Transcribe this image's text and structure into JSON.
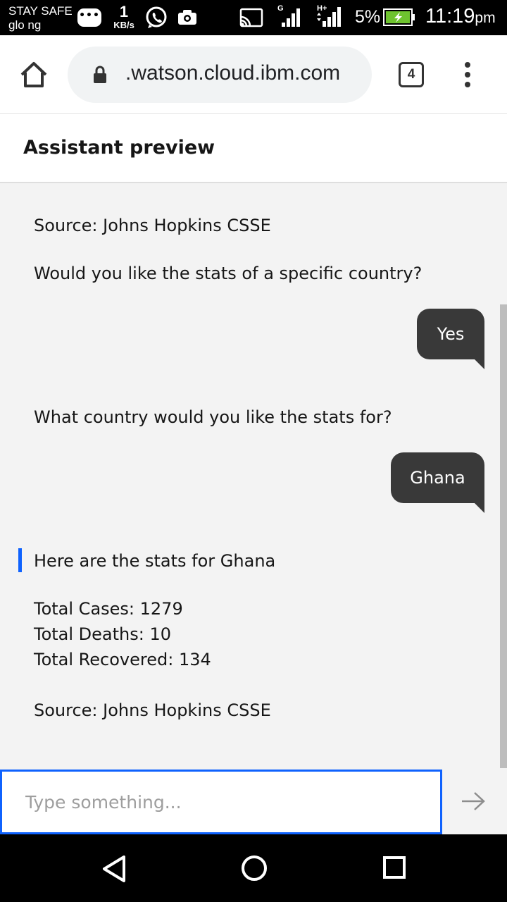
{
  "status_bar": {
    "carrier_line1": "STAY SAFE",
    "carrier_line2": "glo ng",
    "speed_value": "1",
    "speed_unit": "KB/s",
    "network1_label": "G",
    "network2_label": "H+",
    "battery_percent": "5%",
    "time": "11:19",
    "time_suffix": "pm",
    "icons": [
      "chat-bubble-icon",
      "whatsapp-icon",
      "video-camera-icon",
      "cast-icon",
      "signal-icon",
      "battery-charging-icon"
    ]
  },
  "browser": {
    "url": ".watson.cloud.ibm.com",
    "tab_count": "4",
    "icons": [
      "home-icon",
      "lock-icon",
      "tabs-icon",
      "overflow-menu-icon"
    ]
  },
  "assistant": {
    "title": "Assistant preview"
  },
  "chat": {
    "bot_source_top": "Source: Johns Hopkins CSSE",
    "bot_question_country": "Would you like the stats of a specific country?",
    "user_reply_1": "Yes",
    "bot_question_which": "What country would you like the stats for?",
    "user_reply_2": "Ghana",
    "bot_stats_intro": "Here are the stats for Ghana",
    "stat_cases": "Total Cases: 1279",
    "stat_deaths": "Total Deaths: 10",
    "stat_recovered": "Total Recovered: 134",
    "bot_source_bottom": "Source: Johns Hopkins CSSE"
  },
  "input": {
    "placeholder": "Type something...",
    "value": ""
  },
  "navigation": {
    "icons": [
      "back-icon",
      "home-circle-icon",
      "recent-apps-icon"
    ]
  },
  "colors": {
    "accent": "#0f62fe",
    "user_bubble": "#393939",
    "chat_background": "#f3f3f3"
  }
}
